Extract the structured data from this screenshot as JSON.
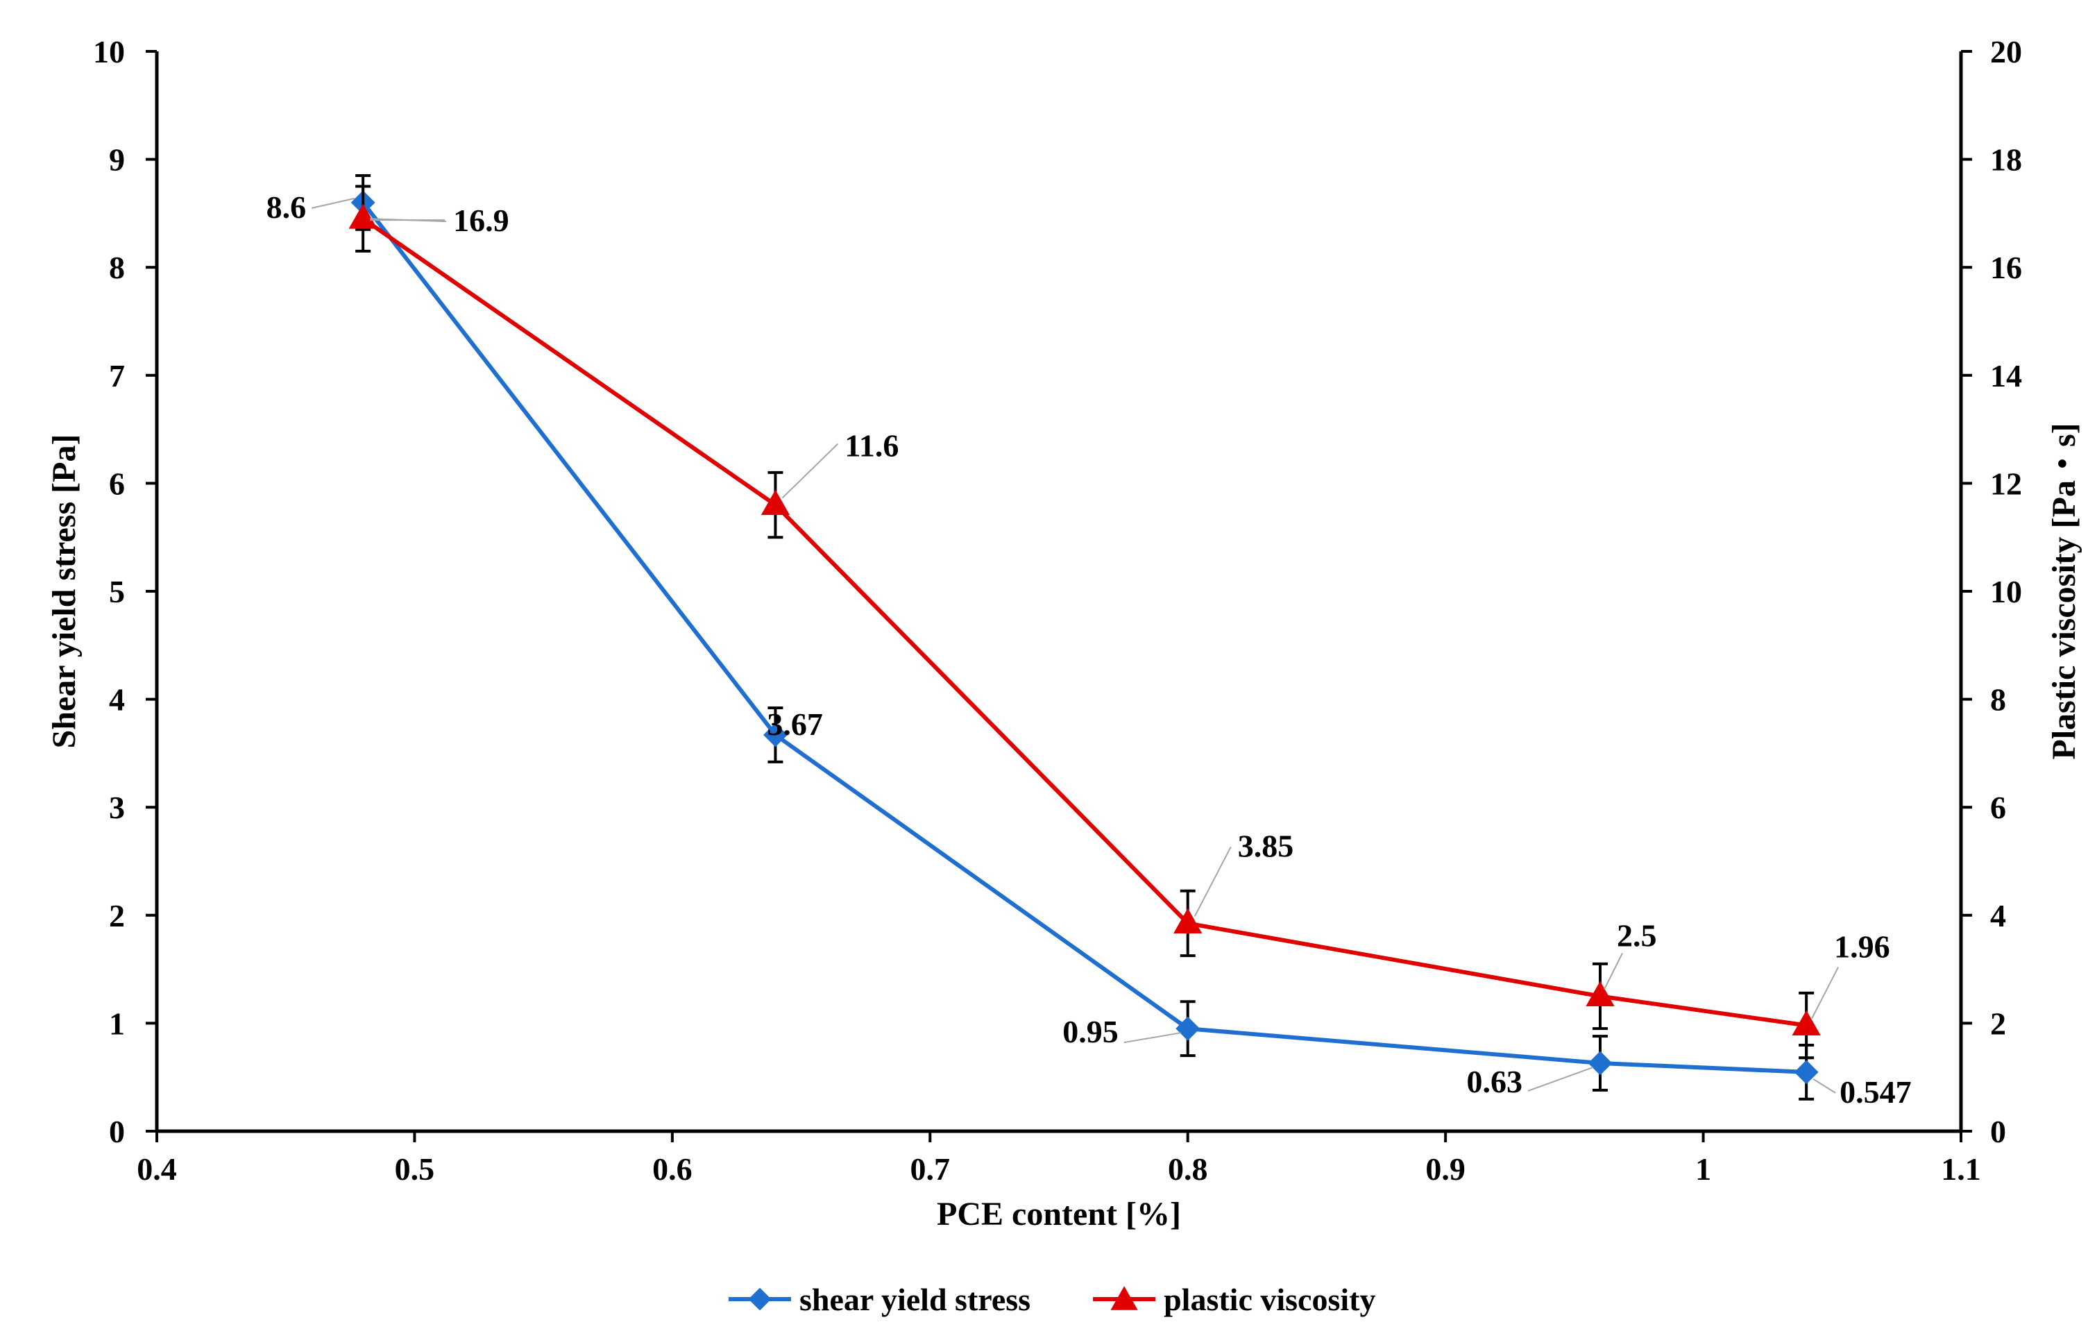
{
  "chart_data": {
    "type": "line",
    "xlabel": "PCE content [%]",
    "ylabel": "Shear yield stress [Pa]",
    "y2label": "Plastic viscosity [Pa・s]",
    "xlim": [
      0.4,
      1.1
    ],
    "ylim": [
      0,
      10
    ],
    "y2lim": [
      0,
      20
    ],
    "x_ticks": [
      "0.4",
      "0.5",
      "0.6",
      "0.7",
      "0.8",
      "0.9",
      "1",
      "1.1"
    ],
    "y_ticks": [
      "0",
      "1",
      "2",
      "3",
      "4",
      "5",
      "6",
      "7",
      "8",
      "9",
      "10"
    ],
    "y2_ticks": [
      "0",
      "2",
      "4",
      "6",
      "8",
      "10",
      "12",
      "14",
      "16",
      "18",
      "20"
    ],
    "grid": false,
    "legend_position": "bottom-center",
    "series": [
      {
        "name": "shear yield stress",
        "axis": "left",
        "color": "#1f6fd0",
        "marker": "diamond",
        "x": [
          0.48,
          0.64,
          0.8,
          0.96,
          1.04
        ],
        "values": [
          8.6,
          3.67,
          0.95,
          0.63,
          0.547
        ],
        "error": [
          0.25,
          0.25,
          0.25,
          0.25,
          0.25
        ],
        "labels": [
          "8.6",
          "3.67",
          "0.95",
          "0.63",
          "0.547"
        ]
      },
      {
        "name": "plastic viscosity",
        "axis": "right",
        "color": "#e00000",
        "marker": "triangle",
        "x": [
          0.48,
          0.64,
          0.8,
          0.96,
          1.04
        ],
        "values": [
          16.9,
          11.6,
          3.85,
          2.5,
          1.96
        ],
        "error": [
          0.6,
          0.6,
          0.6,
          0.6,
          0.6
        ],
        "labels": [
          "16.9",
          "11.6",
          "3.85",
          "2.5",
          "1.96"
        ]
      }
    ]
  }
}
